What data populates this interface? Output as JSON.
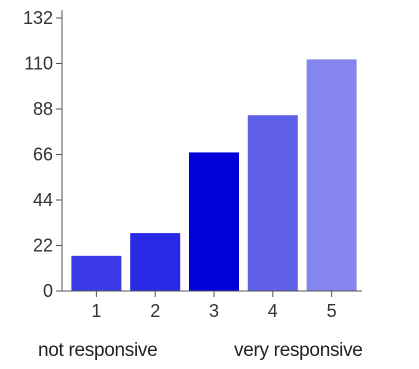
{
  "chart_data": {
    "type": "bar",
    "categories": [
      "1",
      "2",
      "3",
      "4",
      "5"
    ],
    "values": [
      17,
      28,
      67,
      85,
      112
    ],
    "colors": [
      "#3b3be8",
      "#2a2ae6",
      "#0000d8",
      "#5f5fe8",
      "#8585ee"
    ],
    "ylim": [
      0,
      132
    ],
    "yticks": [
      0,
      22,
      44,
      66,
      88,
      110,
      132
    ],
    "grid": false,
    "scale_labels": {
      "low": "not responsive",
      "high": "very responsive"
    }
  }
}
